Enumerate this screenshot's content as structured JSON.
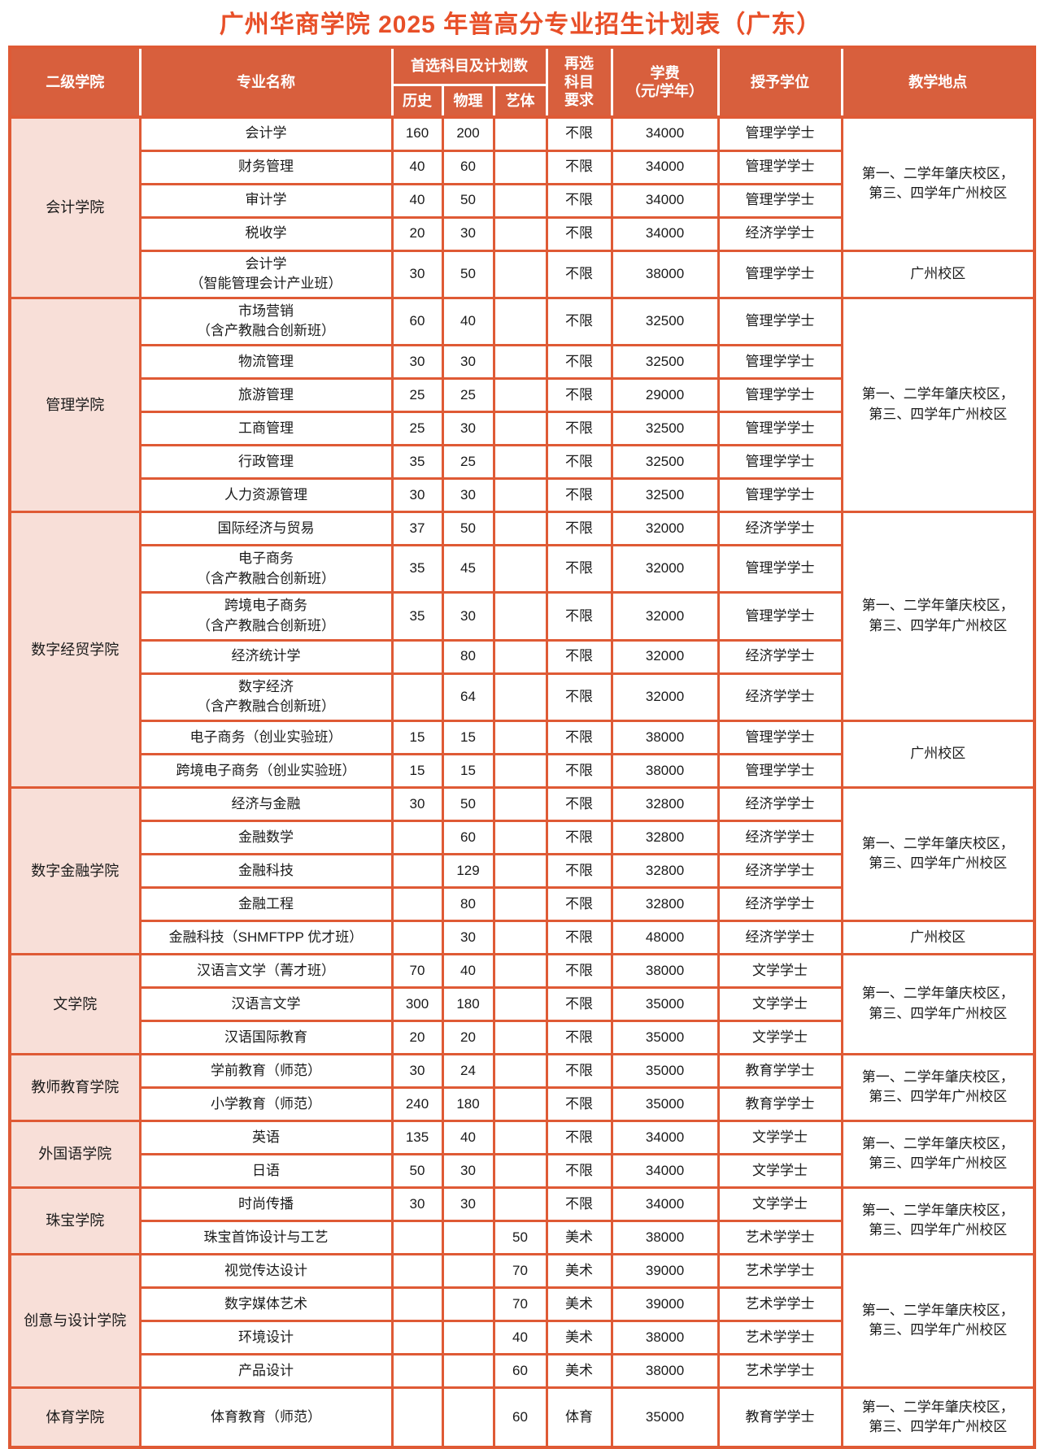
{
  "title": "广州华商学院 2025 年普高分专业招生计划表（广东）",
  "header": {
    "college": "二级学院",
    "major": "专业名称",
    "subjects_group": "首选科目及计划数",
    "history": "历史",
    "physics": "物理",
    "arts": "艺体",
    "reselect": "再选\n科目\n要求",
    "tuition": "学费\n（元/学年）",
    "degree": "授予学位",
    "location": "教学地点"
  },
  "colors": {
    "accent": "#D85F3D",
    "border": "#DF5A35",
    "college_bg": "#F8DFD8",
    "title": "#E84F28",
    "header_text": "#FFFFFF",
    "body_text": "#1A1A1A",
    "page_bg": "#FFFFFF"
  },
  "colleges": [
    {
      "name": "会计学院",
      "rows": [
        {
          "major": "会计学",
          "history": "160",
          "physics": "200",
          "arts": "",
          "reselect": "不限",
          "tuition": "34000",
          "degree": "管理学学士"
        },
        {
          "major": "财务管理",
          "history": "40",
          "physics": "60",
          "arts": "",
          "reselect": "不限",
          "tuition": "34000",
          "degree": "管理学学士"
        },
        {
          "major": "审计学",
          "history": "40",
          "physics": "50",
          "arts": "",
          "reselect": "不限",
          "tuition": "34000",
          "degree": "管理学学士"
        },
        {
          "major": "税收学",
          "history": "20",
          "physics": "30",
          "arts": "",
          "reselect": "不限",
          "tuition": "34000",
          "degree": "经济学学士"
        },
        {
          "major": "会计学\n（智能管理会计产业班）",
          "history": "30",
          "physics": "50",
          "arts": "",
          "reselect": "不限",
          "tuition": "38000",
          "degree": "管理学学士"
        }
      ],
      "locations": [
        {
          "text": "第一、二学年肇庆校区，\n第三、四学年广州校区",
          "span": 4
        },
        {
          "text": "广州校区",
          "span": 1
        }
      ]
    },
    {
      "name": "管理学院",
      "rows": [
        {
          "major": "市场营销\n（含产教融合创新班）",
          "history": "60",
          "physics": "40",
          "arts": "",
          "reselect": "不限",
          "tuition": "32500",
          "degree": "管理学学士"
        },
        {
          "major": "物流管理",
          "history": "30",
          "physics": "30",
          "arts": "",
          "reselect": "不限",
          "tuition": "32500",
          "degree": "管理学学士"
        },
        {
          "major": "旅游管理",
          "history": "25",
          "physics": "25",
          "arts": "",
          "reselect": "不限",
          "tuition": "29000",
          "degree": "管理学学士"
        },
        {
          "major": "工商管理",
          "history": "25",
          "physics": "30",
          "arts": "",
          "reselect": "不限",
          "tuition": "32500",
          "degree": "管理学学士"
        },
        {
          "major": "行政管理",
          "history": "35",
          "physics": "25",
          "arts": "",
          "reselect": "不限",
          "tuition": "32500",
          "degree": "管理学学士"
        },
        {
          "major": "人力资源管理",
          "history": "30",
          "physics": "30",
          "arts": "",
          "reselect": "不限",
          "tuition": "32500",
          "degree": "管理学学士"
        }
      ],
      "locations": [
        {
          "text": "第一、二学年肇庆校区，\n第三、四学年广州校区",
          "span": 6
        }
      ]
    },
    {
      "name": "数字经贸学院",
      "rows": [
        {
          "major": "国际经济与贸易",
          "history": "37",
          "physics": "50",
          "arts": "",
          "reselect": "不限",
          "tuition": "32000",
          "degree": "经济学学士"
        },
        {
          "major": "电子商务\n（含产教融合创新班）",
          "history": "35",
          "physics": "45",
          "arts": "",
          "reselect": "不限",
          "tuition": "32000",
          "degree": "管理学学士"
        },
        {
          "major": "跨境电子商务\n（含产教融合创新班）",
          "history": "35",
          "physics": "30",
          "arts": "",
          "reselect": "不限",
          "tuition": "32000",
          "degree": "管理学学士"
        },
        {
          "major": "经济统计学",
          "history": "",
          "physics": "80",
          "arts": "",
          "reselect": "不限",
          "tuition": "32000",
          "degree": "经济学学士"
        },
        {
          "major": "数字经济\n（含产教融合创新班）",
          "history": "",
          "physics": "64",
          "arts": "",
          "reselect": "不限",
          "tuition": "32000",
          "degree": "经济学学士"
        },
        {
          "major": "电子商务（创业实验班）",
          "history": "15",
          "physics": "15",
          "arts": "",
          "reselect": "不限",
          "tuition": "38000",
          "degree": "管理学学士"
        },
        {
          "major": "跨境电子商务（创业实验班）",
          "history": "15",
          "physics": "15",
          "arts": "",
          "reselect": "不限",
          "tuition": "38000",
          "degree": "管理学学士"
        }
      ],
      "locations": [
        {
          "text": "第一、二学年肇庆校区，\n第三、四学年广州校区",
          "span": 5
        },
        {
          "text": "广州校区",
          "span": 2
        }
      ]
    },
    {
      "name": "数字金融学院",
      "rows": [
        {
          "major": "经济与金融",
          "history": "30",
          "physics": "50",
          "arts": "",
          "reselect": "不限",
          "tuition": "32800",
          "degree": "经济学学士"
        },
        {
          "major": "金融数学",
          "history": "",
          "physics": "60",
          "arts": "",
          "reselect": "不限",
          "tuition": "32800",
          "degree": "经济学学士"
        },
        {
          "major": "金融科技",
          "history": "",
          "physics": "129",
          "arts": "",
          "reselect": "不限",
          "tuition": "32800",
          "degree": "经济学学士"
        },
        {
          "major": "金融工程",
          "history": "",
          "physics": "80",
          "arts": "",
          "reselect": "不限",
          "tuition": "32800",
          "degree": "经济学学士"
        },
        {
          "major": "金融科技（SHMFTPP 优才班）",
          "history": "",
          "physics": "30",
          "arts": "",
          "reselect": "不限",
          "tuition": "48000",
          "degree": "经济学学士"
        }
      ],
      "locations": [
        {
          "text": "第一、二学年肇庆校区，\n第三、四学年广州校区",
          "span": 4
        },
        {
          "text": "广州校区",
          "span": 1
        }
      ]
    },
    {
      "name": "文学院",
      "rows": [
        {
          "major": "汉语言文学（菁才班）",
          "history": "70",
          "physics": "40",
          "arts": "",
          "reselect": "不限",
          "tuition": "38000",
          "degree": "文学学士"
        },
        {
          "major": "汉语言文学",
          "history": "300",
          "physics": "180",
          "arts": "",
          "reselect": "不限",
          "tuition": "35000",
          "degree": "文学学士"
        },
        {
          "major": "汉语国际教育",
          "history": "20",
          "physics": "20",
          "arts": "",
          "reselect": "不限",
          "tuition": "35000",
          "degree": "文学学士"
        }
      ],
      "locations": [
        {
          "text": "第一、二学年肇庆校区，\n第三、四学年广州校区",
          "span": 3
        }
      ]
    },
    {
      "name": "教师教育学院",
      "rows": [
        {
          "major": "学前教育（师范）",
          "history": "30",
          "physics": "24",
          "arts": "",
          "reselect": "不限",
          "tuition": "35000",
          "degree": "教育学学士"
        },
        {
          "major": "小学教育（师范）",
          "history": "240",
          "physics": "180",
          "arts": "",
          "reselect": "不限",
          "tuition": "35000",
          "degree": "教育学学士"
        }
      ],
      "locations": [
        {
          "text": "第一、二学年肇庆校区，\n第三、四学年广州校区",
          "span": 2
        }
      ]
    },
    {
      "name": "外国语学院",
      "rows": [
        {
          "major": "英语",
          "history": "135",
          "physics": "40",
          "arts": "",
          "reselect": "不限",
          "tuition": "34000",
          "degree": "文学学士"
        },
        {
          "major": "日语",
          "history": "50",
          "physics": "30",
          "arts": "",
          "reselect": "不限",
          "tuition": "34000",
          "degree": "文学学士"
        }
      ],
      "locations": [
        {
          "text": "第一、二学年肇庆校区，\n第三、四学年广州校区",
          "span": 2
        }
      ]
    },
    {
      "name": "珠宝学院",
      "rows": [
        {
          "major": "时尚传播",
          "history": "30",
          "physics": "30",
          "arts": "",
          "reselect": "不限",
          "tuition": "34000",
          "degree": "文学学士"
        },
        {
          "major": "珠宝首饰设计与工艺",
          "history": "",
          "physics": "",
          "arts": "50",
          "reselect": "美术",
          "tuition": "38000",
          "degree": "艺术学学士"
        }
      ],
      "locations": [
        {
          "text": "第一、二学年肇庆校区，\n第三、四学年广州校区",
          "span": 2
        }
      ]
    },
    {
      "name": "创意与设计学院",
      "rows": [
        {
          "major": "视觉传达设计",
          "history": "",
          "physics": "",
          "arts": "70",
          "reselect": "美术",
          "tuition": "39000",
          "degree": "艺术学学士"
        },
        {
          "major": "数字媒体艺术",
          "history": "",
          "physics": "",
          "arts": "70",
          "reselect": "美术",
          "tuition": "39000",
          "degree": "艺术学学士"
        },
        {
          "major": "环境设计",
          "history": "",
          "physics": "",
          "arts": "40",
          "reselect": "美术",
          "tuition": "38000",
          "degree": "艺术学学士"
        },
        {
          "major": "产品设计",
          "history": "",
          "physics": "",
          "arts": "60",
          "reselect": "美术",
          "tuition": "38000",
          "degree": "艺术学学士"
        }
      ],
      "locations": [
        {
          "text": "第一、二学年肇庆校区，\n第三、四学年广州校区",
          "span": 4
        }
      ]
    },
    {
      "name": "体育学院",
      "rows": [
        {
          "major": "体育教育（师范）",
          "history": "",
          "physics": "",
          "arts": "60",
          "reselect": "体育",
          "tuition": "35000",
          "degree": "教育学学士"
        }
      ],
      "locations": [
        {
          "text": "第一、二学年肇庆校区，\n第三、四学年广州校区",
          "span": 1
        }
      ]
    }
  ]
}
